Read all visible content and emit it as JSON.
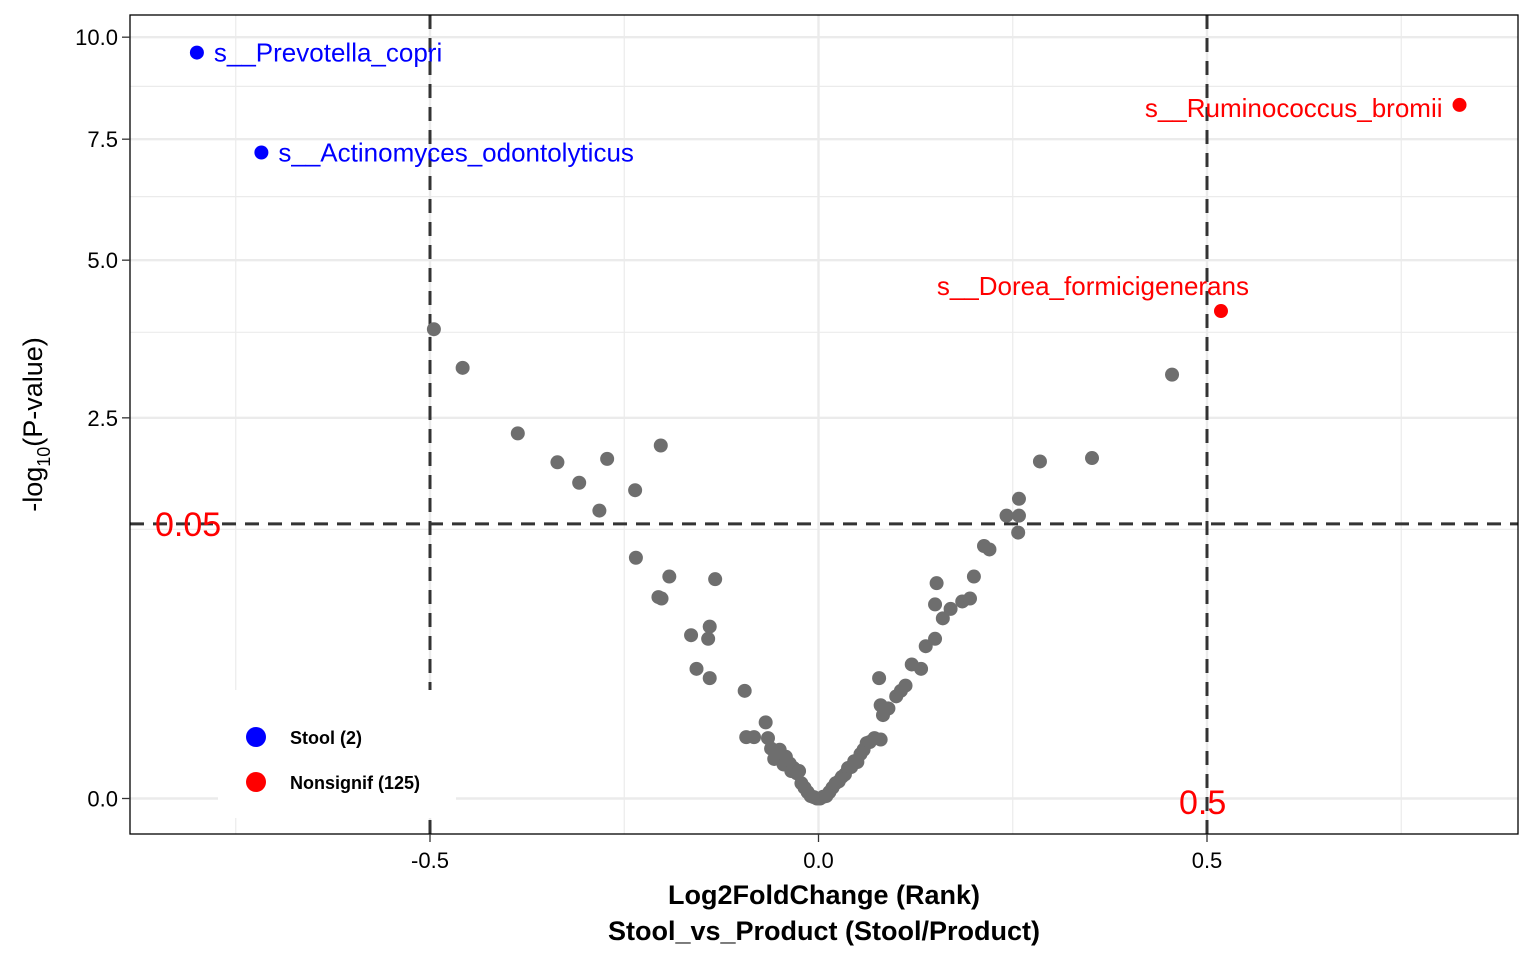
{
  "chart_data": {
    "type": "scatter",
    "xlabel": "Log2FoldChange (Rank)",
    "xlabel2": "Stool_vs_Product (Stool/Product)",
    "ylabel_prefix": "-log",
    "ylabel_sub": "10",
    "ylabel_suffix": "(P-value)",
    "xlim": [
      -0.895,
      0.895
    ],
    "x_ticks": [
      -0.5,
      0.0,
      0.5
    ],
    "x_tick_labels": [
      "-0.5",
      "0.0",
      "0.5"
    ],
    "y_ticks": [
      0.0,
      2.5,
      5.0,
      7.5,
      10.0
    ],
    "y_tick_labels": [
      "0.0",
      "2.5",
      "5.0",
      "7.5",
      "10.0"
    ],
    "y_scale": "sqrt",
    "ylim": [
      -0.1,
      10.8
    ],
    "grid": true,
    "threshold_p_label": "0.05",
    "threshold_p_y": 1.301,
    "threshold_fc_label": "0.5",
    "threshold_fc_x": [
      -0.5,
      0.5
    ],
    "colors": {
      "stool": "#0000ff",
      "nonsignif": "#ff0000",
      "gray": "#6e6e6e",
      "threshold": "#333333"
    },
    "labeled_points": [
      {
        "x": -0.8,
        "y": 9.6,
        "label": "s__Prevotella_copri",
        "color": "#0000ff",
        "anchor": "start"
      },
      {
        "x": -0.717,
        "y": 7.2,
        "label": "s__Actinomyces_odontolyticus",
        "color": "#0000ff",
        "anchor": "start"
      },
      {
        "x": 0.825,
        "y": 8.3,
        "label": "s__Ruminococcus_bromii",
        "color": "#ff0000",
        "anchor": "end"
      },
      {
        "x": 0.518,
        "y": 4.1,
        "label": "s__Dorea_formicigenerans",
        "color": "#ff0000",
        "anchor": "end-above"
      }
    ],
    "series": [
      {
        "name": "background",
        "points": [
          [
            -0.495,
            3.8
          ],
          [
            -0.458,
            3.2
          ],
          [
            -0.387,
            2.3
          ],
          [
            -0.336,
            1.95
          ],
          [
            -0.308,
            1.72
          ],
          [
            -0.272,
            1.99
          ],
          [
            -0.282,
            1.43
          ],
          [
            -0.236,
            1.64
          ],
          [
            -0.203,
            2.15
          ],
          [
            -0.235,
            1.0
          ],
          [
            -0.192,
            0.85
          ],
          [
            -0.206,
            0.7
          ],
          [
            -0.202,
            0.69
          ],
          [
            -0.133,
            0.83
          ],
          [
            -0.164,
            0.46
          ],
          [
            -0.142,
            0.44
          ],
          [
            -0.14,
            0.51
          ],
          [
            -0.157,
            0.29
          ],
          [
            -0.14,
            0.25
          ],
          [
            -0.095,
            0.2
          ],
          [
            -0.068,
            0.1
          ],
          [
            -0.093,
            0.065
          ],
          [
            -0.083,
            0.065
          ],
          [
            -0.065,
            0.063
          ],
          [
            -0.061,
            0.043
          ],
          [
            -0.057,
            0.027
          ],
          [
            -0.05,
            0.041
          ],
          [
            -0.045,
            0.02
          ],
          [
            -0.042,
            0.03
          ],
          [
            -0.037,
            0.021
          ],
          [
            -0.035,
            0.013
          ],
          [
            -0.032,
            0.016
          ],
          [
            -0.028,
            0.011
          ],
          [
            -0.025,
            0.013
          ],
          [
            -0.022,
            0.004
          ],
          [
            -0.018,
            0.002
          ],
          [
            -0.014,
            0.0007
          ],
          [
            -0.01,
            0.0001
          ],
          [
            -0.006,
            3e-05
          ],
          [
            -0.002,
            0.0
          ],
          [
            0.002,
            0.0
          ],
          [
            0.006,
            5e-05
          ],
          [
            0.01,
            0.0001
          ],
          [
            0.014,
            0.0007
          ],
          [
            0.018,
            0.002
          ],
          [
            0.022,
            0.004
          ],
          [
            0.026,
            0.005
          ],
          [
            0.03,
            0.008
          ],
          [
            0.034,
            0.01
          ],
          [
            0.038,
            0.016
          ],
          [
            0.042,
            0.017
          ],
          [
            0.046,
            0.024
          ],
          [
            0.05,
            0.023
          ],
          [
            0.054,
            0.034
          ],
          [
            0.058,
            0.041
          ],
          [
            0.062,
            0.053
          ],
          [
            0.066,
            0.055
          ],
          [
            0.072,
            0.063
          ],
          [
            0.08,
            0.06
          ],
          [
            0.083,
            0.12
          ],
          [
            0.078,
            0.25
          ],
          [
            0.08,
            0.15
          ],
          [
            0.09,
            0.14
          ],
          [
            0.1,
            0.18
          ],
          [
            0.106,
            0.2
          ],
          [
            0.112,
            0.22
          ],
          [
            0.12,
            0.31
          ],
          [
            0.132,
            0.29
          ],
          [
            0.138,
            0.4
          ],
          [
            0.15,
            0.44
          ],
          [
            0.16,
            0.56
          ],
          [
            0.17,
            0.62
          ],
          [
            0.185,
            0.67
          ],
          [
            0.195,
            0.69
          ],
          [
            0.152,
            0.8
          ],
          [
            0.15,
            0.65
          ],
          [
            0.2,
            0.85
          ],
          [
            0.213,
            1.1
          ],
          [
            0.22,
            1.07
          ],
          [
            0.242,
            1.38
          ],
          [
            0.258,
            1.38
          ],
          [
            0.257,
            1.22
          ],
          [
            0.258,
            1.55
          ],
          [
            0.285,
            1.96
          ],
          [
            0.352,
            2.0
          ],
          [
            0.455,
            3.1
          ]
        ]
      },
      {
        "name": "Stool (2)",
        "color": "#0000ff"
      },
      {
        "name": "Nonsignif (125)",
        "color": "#ff0000"
      }
    ],
    "legend": {
      "placement": "bottom-left",
      "entries": [
        {
          "label": "Stool (2)",
          "color": "#0000ff"
        },
        {
          "label": "Nonsignif (125)",
          "color": "#ff0000"
        }
      ]
    }
  }
}
